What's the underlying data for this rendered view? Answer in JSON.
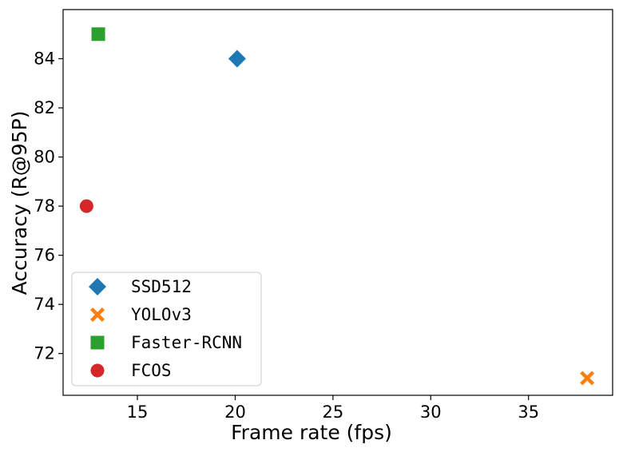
{
  "chart_data": {
    "type": "scatter",
    "title": "",
    "xlabel": "Frame rate (fps)",
    "ylabel": "Accuracy (R@95P)",
    "xlim": [
      11.2,
      39.3
    ],
    "ylim": [
      70.3,
      86.0
    ],
    "xticks": [
      15,
      20,
      25,
      30,
      35
    ],
    "yticks": [
      72,
      74,
      76,
      78,
      80,
      82,
      84
    ],
    "grid": false,
    "legend_position": "lower-left",
    "series": [
      {
        "name": "SSD512",
        "marker": "diamond",
        "color": "#1f77b4",
        "x": [
          20.1
        ],
        "y": [
          84.0
        ]
      },
      {
        "name": "YOLOv3",
        "marker": "x-filled",
        "color": "#ff7f0e",
        "x": [
          38.0
        ],
        "y": [
          71.0
        ]
      },
      {
        "name": "Faster-RCNN",
        "marker": "square",
        "color": "#2ca02c",
        "x": [
          13.0
        ],
        "y": [
          85.0
        ]
      },
      {
        "name": "FCOS",
        "marker": "circle",
        "color": "#d62728",
        "x": [
          12.4
        ],
        "y": [
          78.0
        ]
      }
    ]
  }
}
